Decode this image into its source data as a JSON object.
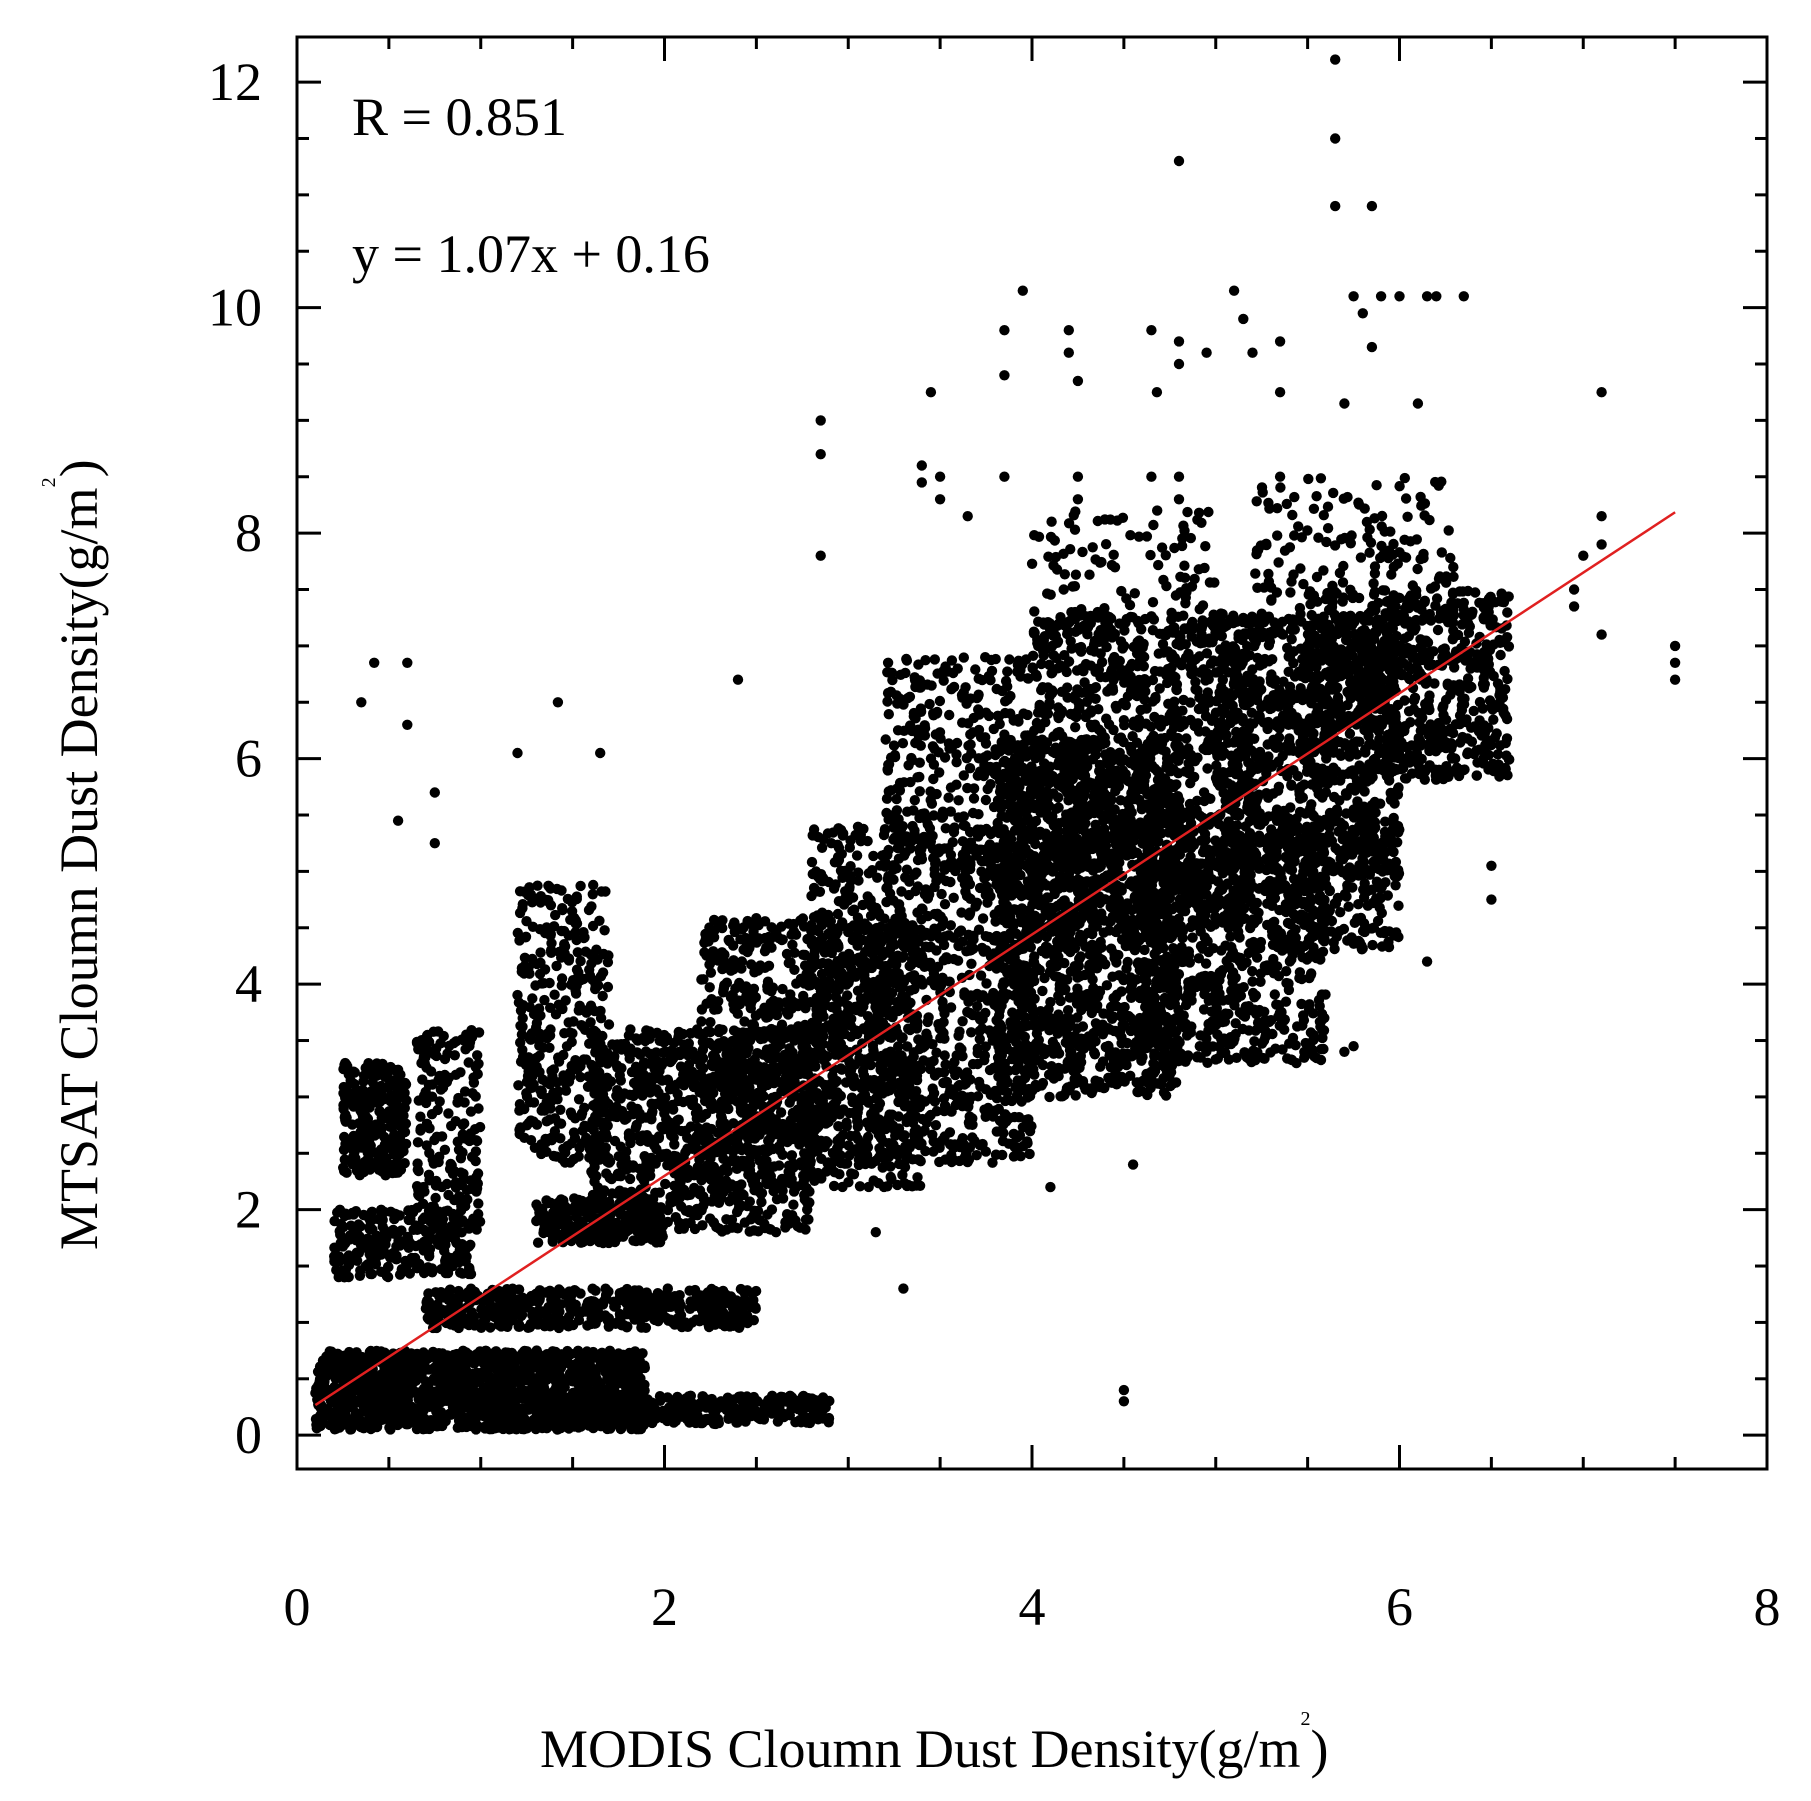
{
  "chart_data": {
    "type": "scatter",
    "title": "",
    "xlabel": "MODIS Cloumn Dust Density(g/m",
    "xlabel_sup": "2",
    "xlabel_end": ")",
    "ylabel": "MTSAT Cloumn Dust Density(g/m",
    "ylabel_sup": "2",
    "ylabel_end": ")",
    "xlim": [
      0,
      8
    ],
    "ylim": [
      -0.3,
      12.4
    ],
    "x_ticks": [
      "0",
      "2",
      "4",
      "6",
      "8"
    ],
    "y_ticks": [
      "0",
      "2",
      "4",
      "6",
      "8",
      "10",
      "12"
    ],
    "grid": false,
    "annotations": {
      "r": "R = 0.851",
      "equation": "y = 1.07x + 0.16"
    },
    "fit_line": {
      "slope": 1.07,
      "intercept": 0.16,
      "x_range": [
        0.1,
        7.5
      ],
      "color": "#e02020"
    },
    "point_color": "#000000",
    "outliers": [
      {
        "x": 0.35,
        "y": 6.5
      },
      {
        "x": 0.42,
        "y": 6.85
      },
      {
        "x": 0.6,
        "y": 6.85
      },
      {
        "x": 0.6,
        "y": 6.3
      },
      {
        "x": 0.75,
        "y": 5.7
      },
      {
        "x": 0.75,
        "y": 5.25
      },
      {
        "x": 0.55,
        "y": 5.45
      },
      {
        "x": 1.2,
        "y": 6.05
      },
      {
        "x": 1.42,
        "y": 6.5
      },
      {
        "x": 1.65,
        "y": 6.05
      },
      {
        "x": 2.4,
        "y": 6.7
      },
      {
        "x": 2.85,
        "y": 9.0
      },
      {
        "x": 2.85,
        "y": 8.7
      },
      {
        "x": 2.85,
        "y": 7.8
      },
      {
        "x": 3.45,
        "y": 9.25
      },
      {
        "x": 3.95,
        "y": 10.15
      },
      {
        "x": 3.85,
        "y": 9.8
      },
      {
        "x": 3.85,
        "y": 9.4
      },
      {
        "x": 4.2,
        "y": 9.8
      },
      {
        "x": 4.2,
        "y": 9.6
      },
      {
        "x": 4.25,
        "y": 9.35
      },
      {
        "x": 4.65,
        "y": 9.8
      },
      {
        "x": 4.68,
        "y": 9.25
      },
      {
        "x": 4.8,
        "y": 11.3
      },
      {
        "x": 4.8,
        "y": 9.7
      },
      {
        "x": 4.8,
        "y": 9.5
      },
      {
        "x": 4.95,
        "y": 9.6
      },
      {
        "x": 5.1,
        "y": 10.15
      },
      {
        "x": 5.15,
        "y": 9.9
      },
      {
        "x": 5.2,
        "y": 9.6
      },
      {
        "x": 5.35,
        "y": 9.7
      },
      {
        "x": 5.35,
        "y": 9.25
      },
      {
        "x": 5.65,
        "y": 12.2
      },
      {
        "x": 5.65,
        "y": 11.5
      },
      {
        "x": 5.65,
        "y": 10.9
      },
      {
        "x": 5.85,
        "y": 10.9
      },
      {
        "x": 5.75,
        "y": 10.1
      },
      {
        "x": 5.8,
        "y": 9.95
      },
      {
        "x": 5.85,
        "y": 9.65
      },
      {
        "x": 5.9,
        "y": 10.1
      },
      {
        "x": 6.0,
        "y": 10.1
      },
      {
        "x": 6.15,
        "y": 10.1
      },
      {
        "x": 6.2,
        "y": 10.1
      },
      {
        "x": 6.35,
        "y": 10.1
      },
      {
        "x": 6.1,
        "y": 9.15
      },
      {
        "x": 5.7,
        "y": 9.15
      },
      {
        "x": 3.4,
        "y": 8.6
      },
      {
        "x": 3.4,
        "y": 8.45
      },
      {
        "x": 3.5,
        "y": 8.5
      },
      {
        "x": 3.5,
        "y": 8.3
      },
      {
        "x": 3.65,
        "y": 8.15
      },
      {
        "x": 3.85,
        "y": 8.5
      },
      {
        "x": 4.25,
        "y": 8.5
      },
      {
        "x": 4.25,
        "y": 8.3
      },
      {
        "x": 4.65,
        "y": 8.5
      },
      {
        "x": 4.8,
        "y": 8.5
      },
      {
        "x": 4.8,
        "y": 8.3
      },
      {
        "x": 5.35,
        "y": 8.5
      },
      {
        "x": 7.1,
        "y": 9.25
      },
      {
        "x": 7.0,
        "y": 7.8
      },
      {
        "x": 7.1,
        "y": 7.9
      },
      {
        "x": 6.95,
        "y": 7.5
      },
      {
        "x": 6.95,
        "y": 7.35
      },
      {
        "x": 7.1,
        "y": 7.1
      },
      {
        "x": 7.1,
        "y": 8.15
      },
      {
        "x": 7.5,
        "y": 7.0
      },
      {
        "x": 7.5,
        "y": 6.85
      },
      {
        "x": 7.5,
        "y": 6.7
      },
      {
        "x": 4.5,
        "y": 0.4
      },
      {
        "x": 4.5,
        "y": 0.3
      },
      {
        "x": 4.1,
        "y": 2.2
      },
      {
        "x": 4.55,
        "y": 2.4
      },
      {
        "x": 3.3,
        "y": 1.3
      },
      {
        "x": 3.15,
        "y": 1.8
      },
      {
        "x": 5.75,
        "y": 3.45
      },
      {
        "x": 5.7,
        "y": 3.4
      },
      {
        "x": 6.15,
        "y": 4.2
      },
      {
        "x": 6.5,
        "y": 4.75
      },
      {
        "x": 6.5,
        "y": 5.05
      }
    ],
    "clusters": [
      {
        "x_range": [
          0.1,
          1.9
        ],
        "y_range": [
          0.05,
          0.75
        ],
        "count": 1500
      },
      {
        "x_range": [
          1.3,
          2.9
        ],
        "y_range": [
          0.1,
          0.35
        ],
        "count": 400
      },
      {
        "x_range": [
          0.7,
          2.5
        ],
        "y_range": [
          0.95,
          1.3
        ],
        "count": 500
      },
      {
        "x_range": [
          0.25,
          0.6
        ],
        "y_range": [
          2.3,
          3.3
        ],
        "count": 250
      },
      {
        "x_range": [
          0.2,
          0.95
        ],
        "y_range": [
          1.4,
          2.0
        ],
        "count": 250
      },
      {
        "x_range": [
          0.65,
          1.0
        ],
        "y_range": [
          1.8,
          3.6
        ],
        "count": 180
      },
      {
        "x_range": [
          1.2,
          1.7
        ],
        "y_range": [
          2.4,
          4.9
        ],
        "count": 350
      },
      {
        "x_range": [
          1.3,
          2.0
        ],
        "y_range": [
          1.7,
          2.1
        ],
        "count": 260
      },
      {
        "x_range": [
          1.6,
          2.8
        ],
        "y_range": [
          1.8,
          3.6
        ],
        "count": 900
      },
      {
        "x_range": [
          2.2,
          3.4
        ],
        "y_range": [
          2.2,
          4.6
        ],
        "count": 900
      },
      {
        "x_range": [
          2.8,
          4.0
        ],
        "y_range": [
          2.4,
          5.4
        ],
        "count": 1000
      },
      {
        "x_range": [
          3.2,
          4.0
        ],
        "y_range": [
          5.0,
          6.9
        ],
        "count": 350
      },
      {
        "x_range": [
          3.8,
          4.8
        ],
        "y_range": [
          3.0,
          6.2
        ],
        "count": 1300
      },
      {
        "x_range": [
          4.0,
          5.2
        ],
        "y_range": [
          4.5,
          7.3
        ],
        "count": 1100
      },
      {
        "x_range": [
          4.6,
          5.6
        ],
        "y_range": [
          3.3,
          5.3
        ],
        "count": 700
      },
      {
        "x_range": [
          5.0,
          6.0
        ],
        "y_range": [
          5.0,
          7.3
        ],
        "count": 800
      },
      {
        "x_range": [
          5.5,
          6.6
        ],
        "y_range": [
          5.8,
          7.5
        ],
        "count": 700
      },
      {
        "x_range": [
          5.3,
          6.0
        ],
        "y_range": [
          4.3,
          5.5
        ],
        "count": 250
      },
      {
        "x_range": [
          4.0,
          5.0
        ],
        "y_range": [
          7.0,
          8.2
        ],
        "count": 120
      },
      {
        "x_range": [
          5.2,
          6.3
        ],
        "y_range": [
          7.2,
          8.5
        ],
        "count": 150
      }
    ]
  }
}
